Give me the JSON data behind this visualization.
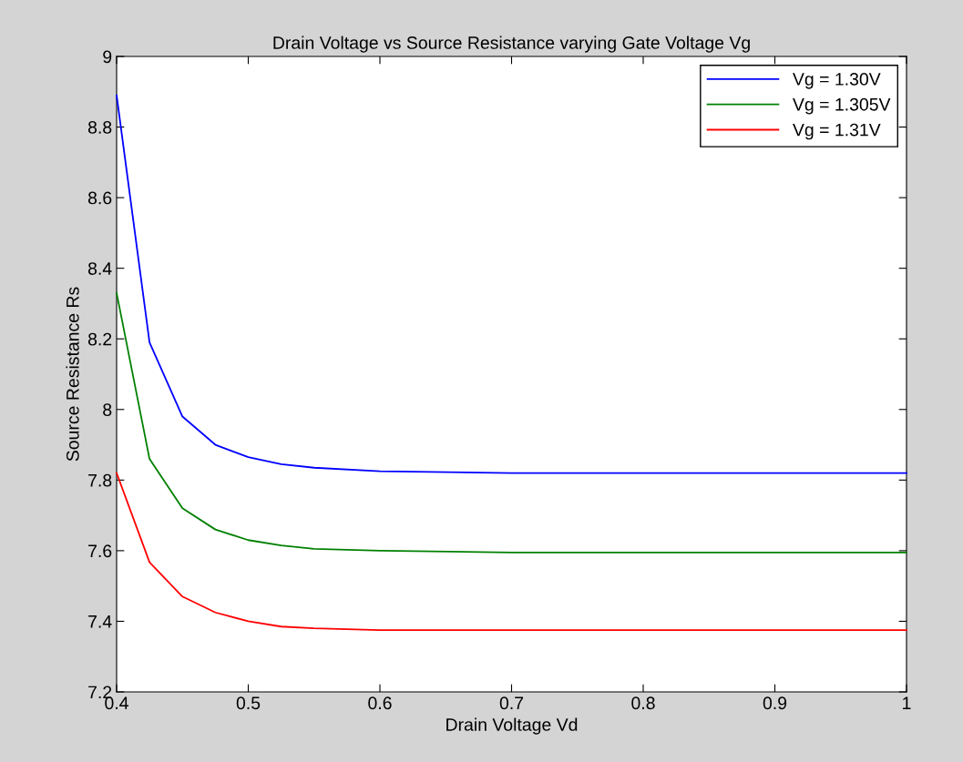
{
  "chart_data": {
    "type": "line",
    "title": "Drain Voltage vs Source Resistance varying Gate Voltage Vg",
    "xlabel": "Drain Voltage Vd",
    "ylabel": "Source Resistance Rs",
    "x": [
      0.4,
      0.425,
      0.45,
      0.475,
      0.5,
      0.525,
      0.55,
      0.6,
      0.7,
      1.0
    ],
    "series": [
      {
        "name": "Vg = 1.30V",
        "color": "#0000ff",
        "values": [
          8.89,
          8.19,
          7.98,
          7.9,
          7.865,
          7.845,
          7.835,
          7.825,
          7.82,
          7.82
        ]
      },
      {
        "name": "Vg = 1.305V",
        "color": "#008000",
        "values": [
          8.33,
          7.86,
          7.72,
          7.66,
          7.63,
          7.615,
          7.605,
          7.6,
          7.595,
          7.595
        ]
      },
      {
        "name": "Vg = 1.31V",
        "color": "#ff0000",
        "values": [
          7.82,
          7.567,
          7.47,
          7.425,
          7.4,
          7.385,
          7.38,
          7.375,
          7.375,
          7.375
        ]
      }
    ],
    "xlim": [
      0.4,
      1
    ],
    "xticks": [
      0.4,
      0.5,
      0.6,
      0.7,
      0.8,
      0.9,
      1
    ],
    "ylim": [
      7.2,
      9
    ],
    "yticks": [
      7.2,
      7.4,
      7.6,
      7.8,
      8,
      8.2,
      8.4,
      8.6,
      8.8,
      9
    ],
    "grid": false,
    "legend": "top right",
    "marker": "none",
    "line_style": "solid"
  }
}
